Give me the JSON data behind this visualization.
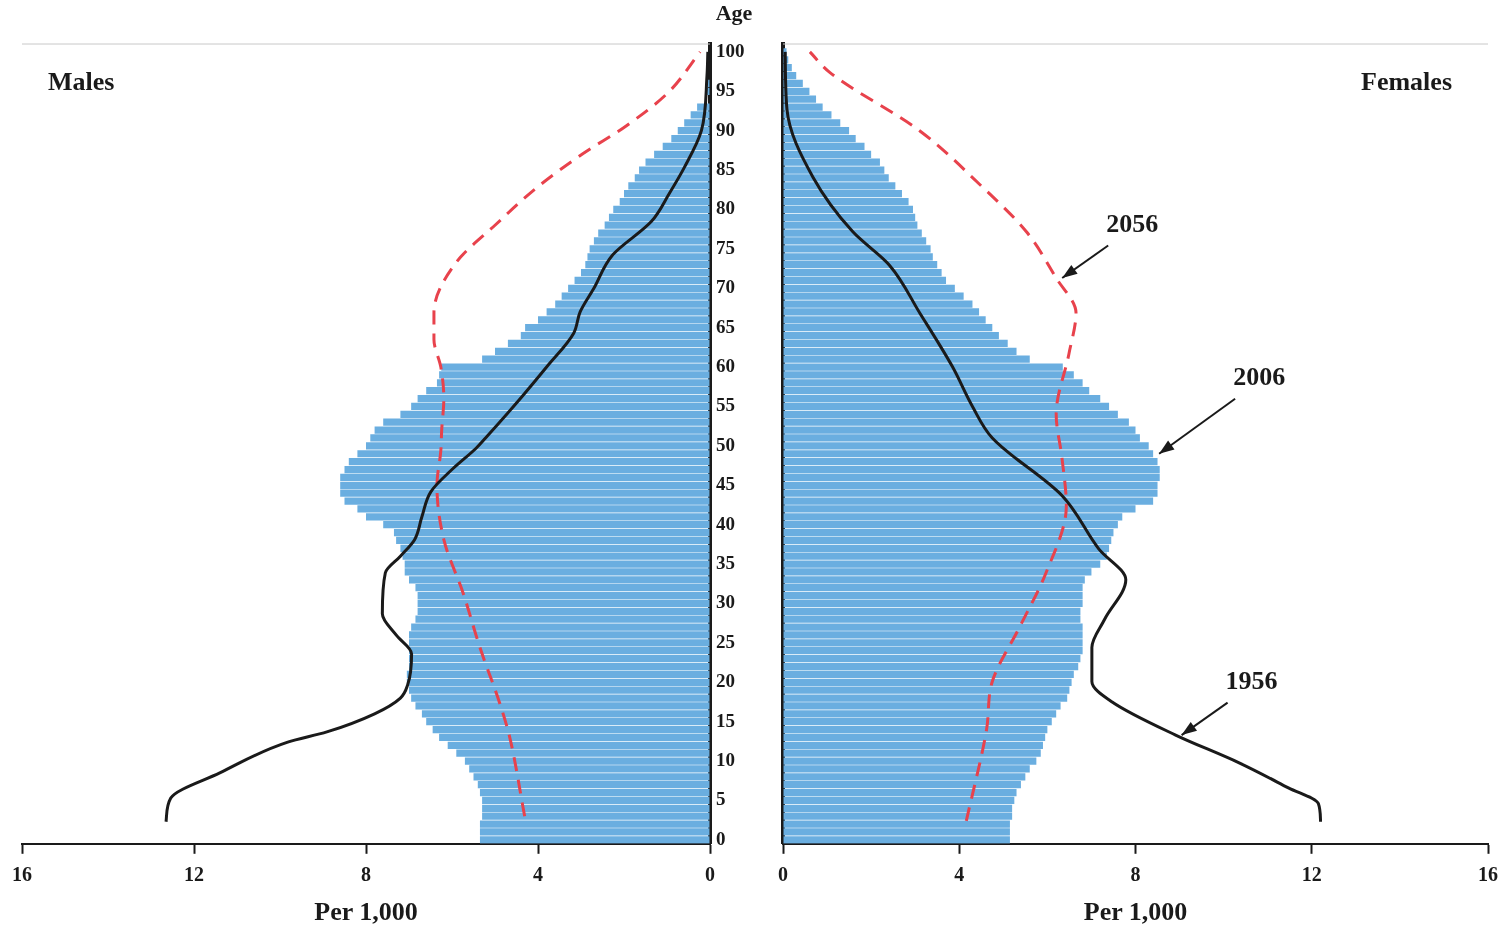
{
  "chart_data": [
    {
      "type": "bar",
      "orientation": "horizontal",
      "annotations": [
        "Males"
      ],
      "ylabel": "Age",
      "xlabel": "Per 1,000",
      "xlim": [
        16,
        0
      ],
      "xticks": [
        16,
        12,
        8,
        4,
        0
      ],
      "ylim": [
        -0.5,
        101
      ],
      "yticks": [
        0,
        5,
        10,
        15,
        20,
        25,
        30,
        35,
        40,
        45,
        50,
        55,
        60,
        65,
        70,
        75,
        80,
        85,
        90,
        95,
        100
      ],
      "grid": false,
      "x": [
        0,
        1,
        2,
        3,
        4,
        5,
        6,
        7,
        8,
        9,
        10,
        11,
        12,
        13,
        14,
        15,
        16,
        17,
        18,
        19,
        20,
        21,
        22,
        23,
        24,
        25,
        26,
        27,
        28,
        29,
        30,
        31,
        32,
        33,
        34,
        35,
        36,
        37,
        38,
        39,
        40,
        41,
        42,
        43,
        44,
        45,
        46,
        47,
        48,
        49,
        50,
        51,
        52,
        53,
        54,
        55,
        56,
        57,
        58,
        59,
        60,
        61,
        62,
        63,
        64,
        65,
        66,
        67,
        68,
        69,
        70,
        71,
        72,
        73,
        74,
        75,
        76,
        77,
        78,
        79,
        80,
        81,
        82,
        83,
        84,
        85,
        86,
        87,
        88,
        89,
        90,
        91,
        92,
        93,
        94,
        95,
        96
      ],
      "series": [
        {
          "color": "#6aaee0",
          "values": [
            5.35,
            5.35,
            5.35,
            5.3,
            5.3,
            5.3,
            5.35,
            5.4,
            5.5,
            5.6,
            5.7,
            5.9,
            6.1,
            6.3,
            6.45,
            6.6,
            6.7,
            6.85,
            6.95,
            7.0,
            7.05,
            7.05,
            7.0,
            7.0,
            7.0,
            7.0,
            7.0,
            6.95,
            6.85,
            6.8,
            6.8,
            6.8,
            6.85,
            7.0,
            7.1,
            7.1,
            7.15,
            7.2,
            7.3,
            7.35,
            7.6,
            8.0,
            8.2,
            8.5,
            8.6,
            8.6,
            8.6,
            8.5,
            8.4,
            8.2,
            8.0,
            7.9,
            7.8,
            7.6,
            7.2,
            6.95,
            6.8,
            6.6,
            6.35,
            6.3,
            6.25,
            5.3,
            5.0,
            4.7,
            4.4,
            4.3,
            4.0,
            3.8,
            3.6,
            3.45,
            3.3,
            3.15,
            3.0,
            2.9,
            2.85,
            2.8,
            2.7,
            2.6,
            2.45,
            2.35,
            2.25,
            2.1,
            2.0,
            1.9,
            1.75,
            1.65,
            1.5,
            1.3,
            1.1,
            0.9,
            0.75,
            0.6,
            0.45,
            0.3,
            null,
            0.08,
            0.05
          ]
        },
        {
          "type": "line",
          "color": "#1a1a1a",
          "line_style": "solid",
          "x": [
            2.3,
            5.3,
            8.5,
            12.4,
            13.7,
            16,
            18,
            19.7,
            23.6,
            26,
            28.7,
            33.9,
            36,
            38.1,
            41,
            44.2,
            47,
            49.7,
            51,
            56.2,
            60,
            64.3,
            67,
            70,
            74.2,
            78.5,
            82,
            85.4,
            90,
            97,
            100
          ],
          "values": [
            12.65,
            12.54,
            11.4,
            9.82,
            8.91,
            7.8,
            7.2,
            7.03,
            6.94,
            7.3,
            7.62,
            7.55,
            7.2,
            6.87,
            6.7,
            6.49,
            6.0,
            5.44,
            5.22,
            4.38,
            3.8,
            3.17,
            3.02,
            2.7,
            2.27,
            1.36,
            0.95,
            0.59,
            0.2,
            0.07,
            0.05
          ]
        },
        {
          "type": "line",
          "color": "#e8424c",
          "line_style": "dashed",
          "x": [
            3,
            13.3,
            17.5,
            24.4,
            31.3,
            38.1,
            45,
            49.4,
            52,
            56,
            60,
            63.5,
            66.9,
            73.3,
            78,
            82.9,
            87.1,
            90.6,
            94.8,
            100
          ],
          "values": [
            4.31,
            4.67,
            4.9,
            5.35,
            5.74,
            6.19,
            6.35,
            6.26,
            6.24,
            6.19,
            6.26,
            6.42,
            6.42,
            5.9,
            5.0,
            4.0,
            2.95,
            1.95,
            0.98,
            0.23
          ]
        }
      ]
    },
    {
      "type": "bar",
      "orientation": "horizontal",
      "annotations": [
        "Females"
      ],
      "xlabel": "Per 1,000",
      "xlim": [
        0,
        16
      ],
      "xticks": [
        0,
        4,
        8,
        12,
        16
      ],
      "ylim": [
        -0.5,
        101
      ],
      "yticks": [
        0,
        5,
        10,
        15,
        20,
        25,
        30,
        35,
        40,
        45,
        50,
        55,
        60,
        65,
        70,
        75,
        80,
        85,
        90,
        95,
        100
      ],
      "grid": false,
      "tick_labels": "x",
      "x": [
        0,
        1,
        2,
        3,
        4,
        5,
        6,
        7,
        8,
        9,
        10,
        11,
        12,
        13,
        14,
        15,
        16,
        17,
        18,
        19,
        20,
        21,
        22,
        23,
        24,
        25,
        26,
        27,
        28,
        29,
        30,
        31,
        32,
        33,
        34,
        35,
        36,
        37,
        38,
        39,
        40,
        41,
        42,
        43,
        44,
        45,
        46,
        47,
        48,
        49,
        50,
        51,
        52,
        53,
        54,
        55,
        56,
        57,
        58,
        59,
        60,
        61,
        62,
        63,
        64,
        65,
        66,
        67,
        68,
        69,
        70,
        71,
        72,
        73,
        74,
        75,
        76,
        77,
        78,
        79,
        80,
        81,
        82,
        83,
        84,
        85,
        86,
        87,
        88,
        89,
        90,
        91,
        92,
        93,
        94,
        95,
        96,
        97,
        98,
        99,
        100
      ],
      "series": [
        {
          "name": "2006",
          "color": "#6aaee0",
          "values": [
            5.15,
            5.15,
            5.15,
            5.2,
            5.2,
            5.25,
            5.3,
            5.4,
            5.5,
            5.6,
            5.75,
            5.85,
            5.9,
            5.95,
            6.0,
            6.1,
            6.2,
            6.3,
            6.45,
            6.5,
            6.55,
            6.6,
            6.7,
            6.75,
            6.8,
            6.8,
            6.8,
            6.8,
            6.75,
            6.75,
            6.8,
            6.8,
            6.8,
            6.85,
            7.0,
            7.2,
            7.35,
            7.4,
            7.45,
            7.5,
            7.6,
            7.7,
            8.0,
            8.4,
            8.5,
            8.5,
            8.55,
            8.55,
            8.5,
            8.4,
            8.3,
            8.1,
            8.0,
            7.85,
            7.6,
            7.4,
            7.2,
            6.95,
            6.8,
            6.6,
            6.35,
            5.6,
            5.3,
            5.1,
            4.9,
            4.75,
            4.6,
            4.45,
            4.3,
            4.1,
            3.9,
            3.7,
            3.6,
            3.5,
            3.4,
            3.35,
            3.25,
            3.15,
            3.05,
            3.0,
            2.95,
            2.85,
            2.7,
            2.55,
            2.4,
            2.3,
            2.2,
            2.0,
            1.85,
            1.65,
            1.5,
            1.3,
            1.1,
            0.9,
            0.75,
            0.6,
            0.45,
            0.3,
            0.2,
            0.12,
            0.08
          ]
        },
        {
          "type": "line",
          "name": "1956",
          "color": "#1a1a1a",
          "line_style": "solid",
          "x": [
            2.3,
            4.6,
            6.6,
            9.8,
            13.3,
            17.5,
            20.1,
            24.4,
            28,
            33,
            36.9,
            43.7,
            51,
            55,
            60,
            66.9,
            72.9,
            77.2,
            84.1,
            92.7,
            100
          ],
          "values": [
            12.2,
            12.15,
            11.47,
            10.34,
            8.91,
            7.47,
            7.01,
            7.01,
            7.3,
            7.78,
            7.17,
            6.33,
            4.75,
            4.3,
            3.85,
            3.1,
            2.42,
            1.58,
            0.68,
            0.09,
            0.05
          ]
        },
        {
          "type": "line",
          "name": "2056",
          "color": "#e8424c",
          "line_style": "dashed",
          "x": [
            2.4,
            14,
            20.1,
            26.9,
            33.9,
            42.4,
            48.5,
            54,
            61.7,
            66.9,
            71.3,
            77.2,
            83.2,
            90,
            97.4,
            100
          ],
          "values": [
            4.16,
            4.62,
            4.75,
            5.36,
            5.97,
            6.43,
            6.33,
            6.2,
            6.49,
            6.65,
            6.2,
            5.52,
            4.46,
            3.1,
            1.06,
            0.61
          ]
        }
      ]
    }
  ]
}
